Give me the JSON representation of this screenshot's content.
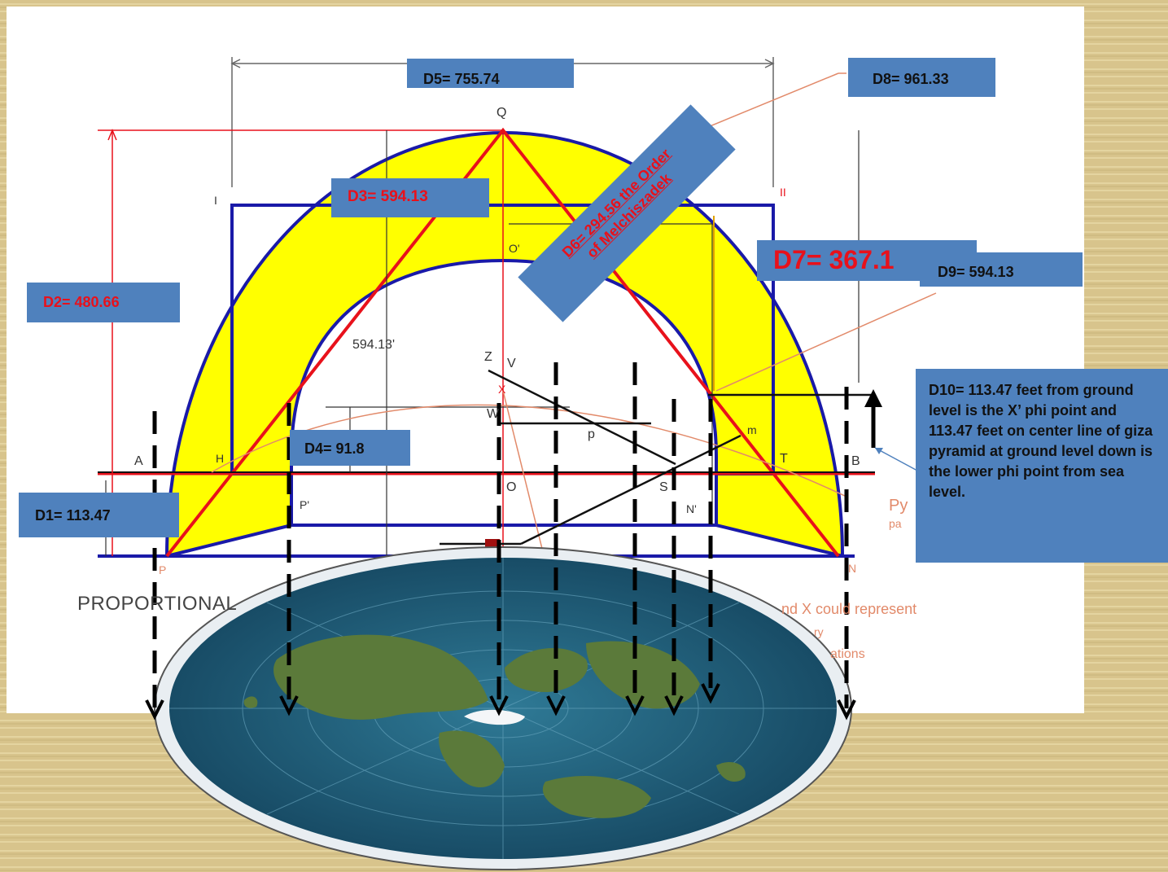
{
  "diagram": {
    "point_labels": {
      "Q": "Q",
      "I": "I",
      "II": "II",
      "O_prime": "O'",
      "Z": "Z",
      "V": "V",
      "X": "X",
      "W": "W",
      "p": "p",
      "m": "m",
      "A": "A",
      "H": "H",
      "T": "T",
      "B": "B",
      "O": "O",
      "S": "S",
      "P_prime": "P'",
      "N_prime": "N'",
      "P": "P",
      "N": "N"
    },
    "dimension_594": "594.13'",
    "proportional_text": "PROPORTIONAL",
    "side_text_line1": "nd X could represent",
    "side_text_line2": "ry",
    "side_text_line3": "ations",
    "py_text": "Py",
    "pa_text": "pa"
  },
  "labels": {
    "d1": "D1= 113.47",
    "d2": "D2= 480.66",
    "d3": "D3= 594.13",
    "d4": "D4= 91.8",
    "d5": "D5= 755.74",
    "d6_line1": "D6= 294.56 the Order",
    "d6_line2": "of Melchiszadek",
    "d7": "D7= 367.1",
    "d8": "D8= 961.33",
    "d9": "D9= 594.13",
    "d10": "D10= 113.47 feet from ground level  is the X’ phi point and 113.47 feet  on center line of giza pyramid at ground level down is the lower phi point from sea level."
  },
  "colors": {
    "label_box": "#4f81bd",
    "highlight_red": "#e8111b",
    "yellow_fill": "#ffff00",
    "blue_outline": "#1a1aa8",
    "ocean": "#1d5e7a",
    "background": "#d8c48c"
  }
}
